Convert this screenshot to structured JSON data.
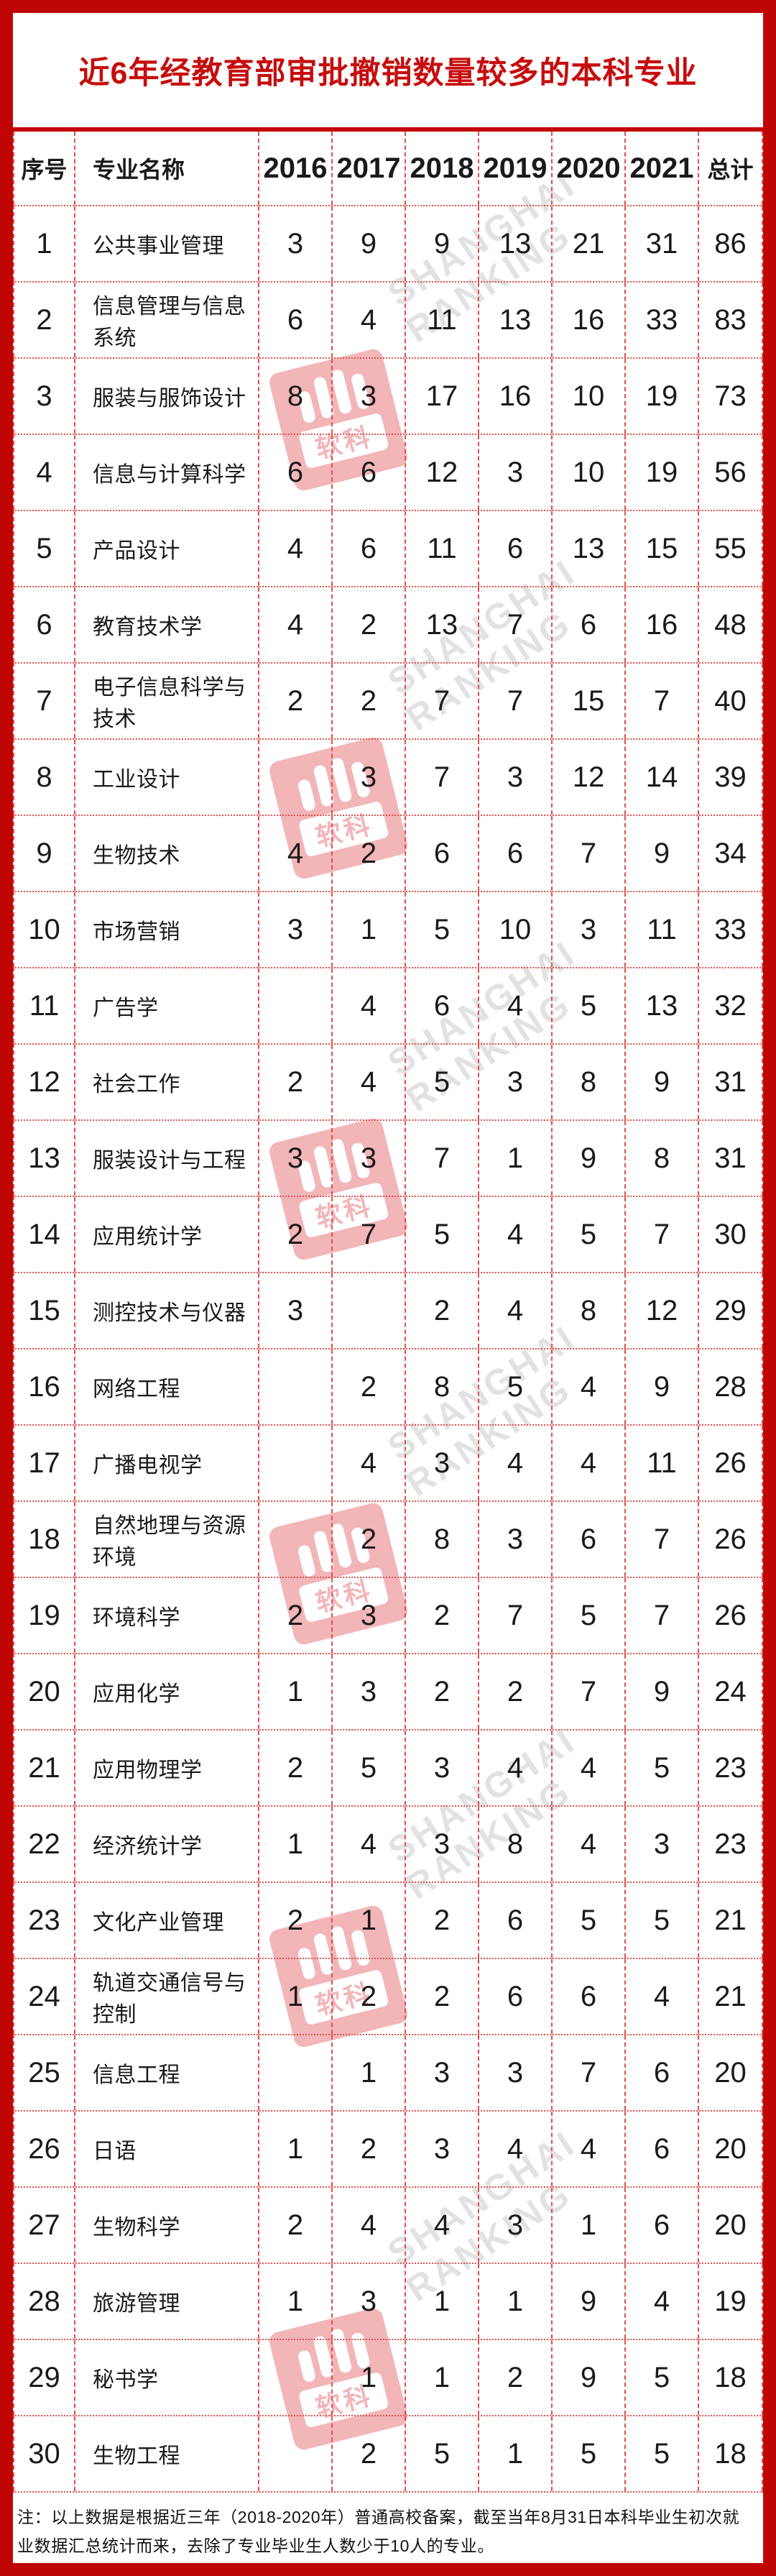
{
  "title": "近6年经教育部审批撤销数量较多的本科专业",
  "colors": {
    "accent_red": "#c00505",
    "title_red": "#c60d0d",
    "grid_red": "#e0504d",
    "text": "#1a1a1a",
    "watermark_gray": "#e2e2e2",
    "watermark_logo_red": "#d8232a"
  },
  "watermark": {
    "line1": "SHANGHAI",
    "line2": "RANKING",
    "logo_text": "软科"
  },
  "footnote": "注：以上数据是根据近三年（2018-2020年）普通高校备案，截至当年8月31日本科毕业生初次就业数据汇总统计而来，去除了专业毕业生人数少于10人的专业。",
  "chart_data": {
    "type": "table",
    "title": "近6年经教育部审批撤销数量较多的本科专业",
    "columns": [
      "序号",
      "专业名称",
      "2016",
      "2017",
      "2018",
      "2019",
      "2020",
      "2021",
      "总计"
    ],
    "rows": [
      [
        "1",
        "公共事业管理",
        "3",
        "9",
        "9",
        "13",
        "21",
        "31",
        "86"
      ],
      [
        "2",
        "信息管理与信息系统",
        "6",
        "4",
        "11",
        "13",
        "16",
        "33",
        "83"
      ],
      [
        "3",
        "服装与服饰设计",
        "8",
        "3",
        "17",
        "16",
        "10",
        "19",
        "73"
      ],
      [
        "4",
        "信息与计算科学",
        "6",
        "6",
        "12",
        "3",
        "10",
        "19",
        "56"
      ],
      [
        "5",
        "产品设计",
        "4",
        "6",
        "11",
        "6",
        "13",
        "15",
        "55"
      ],
      [
        "6",
        "教育技术学",
        "4",
        "2",
        "13",
        "7",
        "6",
        "16",
        "48"
      ],
      [
        "7",
        "电子信息科学与技术",
        "2",
        "2",
        "7",
        "7",
        "15",
        "7",
        "40"
      ],
      [
        "8",
        "工业设计",
        "",
        "3",
        "7",
        "3",
        "12",
        "14",
        "39"
      ],
      [
        "9",
        "生物技术",
        "4",
        "2",
        "6",
        "6",
        "7",
        "9",
        "34"
      ],
      [
        "10",
        "市场营销",
        "3",
        "1",
        "5",
        "10",
        "3",
        "11",
        "33"
      ],
      [
        "11",
        "广告学",
        "",
        "4",
        "6",
        "4",
        "5",
        "13",
        "32"
      ],
      [
        "12",
        "社会工作",
        "2",
        "4",
        "5",
        "3",
        "8",
        "9",
        "31"
      ],
      [
        "13",
        "服装设计与工程",
        "3",
        "3",
        "7",
        "1",
        "9",
        "8",
        "31"
      ],
      [
        "14",
        "应用统计学",
        "2",
        "7",
        "5",
        "4",
        "5",
        "7",
        "30"
      ],
      [
        "15",
        "测控技术与仪器",
        "3",
        "",
        "2",
        "4",
        "8",
        "12",
        "29"
      ],
      [
        "16",
        "网络工程",
        "",
        "2",
        "8",
        "5",
        "4",
        "9",
        "28"
      ],
      [
        "17",
        "广播电视学",
        "",
        "4",
        "3",
        "4",
        "4",
        "11",
        "26"
      ],
      [
        "18",
        "自然地理与资源环境",
        "",
        "2",
        "8",
        "3",
        "6",
        "7",
        "26"
      ],
      [
        "19",
        "环境科学",
        "2",
        "3",
        "2",
        "7",
        "5",
        "7",
        "26"
      ],
      [
        "20",
        "应用化学",
        "1",
        "3",
        "2",
        "2",
        "7",
        "9",
        "24"
      ],
      [
        "21",
        "应用物理学",
        "2",
        "5",
        "3",
        "4",
        "4",
        "5",
        "23"
      ],
      [
        "22",
        "经济统计学",
        "1",
        "4",
        "3",
        "8",
        "4",
        "3",
        "23"
      ],
      [
        "23",
        "文化产业管理",
        "2",
        "1",
        "2",
        "6",
        "5",
        "5",
        "21"
      ],
      [
        "24",
        "轨道交通信号与控制",
        "1",
        "2",
        "2",
        "6",
        "6",
        "4",
        "21"
      ],
      [
        "25",
        "信息工程",
        "",
        "1",
        "3",
        "3",
        "7",
        "6",
        "20"
      ],
      [
        "26",
        "日语",
        "1",
        "2",
        "3",
        "4",
        "4",
        "6",
        "20"
      ],
      [
        "27",
        "生物科学",
        "2",
        "4",
        "4",
        "3",
        "1",
        "6",
        "20"
      ],
      [
        "28",
        "旅游管理",
        "1",
        "3",
        "1",
        "1",
        "9",
        "4",
        "19"
      ],
      [
        "29",
        "秘书学",
        "",
        "1",
        "1",
        "2",
        "9",
        "5",
        "18"
      ],
      [
        "30",
        "生物工程",
        "",
        "2",
        "5",
        "1",
        "5",
        "5",
        "18"
      ]
    ]
  }
}
